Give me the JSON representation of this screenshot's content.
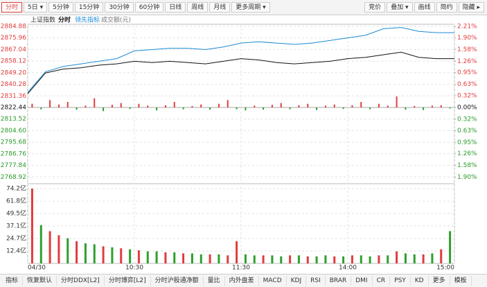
{
  "toolbar_left": [
    "分时",
    "5日 ▾",
    "5分钟",
    "15分钟",
    "30分钟",
    "60分钟",
    "日线",
    "周线",
    "月线",
    "更多周期 ▾"
  ],
  "toolbar_right": [
    "竞价",
    "叠加 ▾",
    "画线",
    "简约",
    "隐藏 ▸"
  ],
  "bottom_tabs": [
    "指标",
    "恢复默认",
    "分时DDX[L2]",
    "分时博弈[L2]",
    "分时沪股通净额",
    "量比",
    "内外盘差",
    "MACD",
    "KDJ",
    "RSI",
    "BRAR",
    "DMI",
    "CR",
    "PSY",
    "KD",
    "更多",
    "模板"
  ],
  "chart_data": [
    {
      "type": "line",
      "title": "上证指数",
      "x": [
        0,
        10,
        20,
        30,
        40,
        50,
        60,
        70,
        80,
        90,
        100,
        110,
        120,
        130,
        140,
        150,
        160,
        170,
        180,
        190,
        200,
        210,
        220,
        230,
        240
      ],
      "xlim": [
        0,
        240
      ],
      "xticks": [
        {
          "value": 0,
          "label": "04/30"
        },
        {
          "value": 60,
          "label": "10:30"
        },
        {
          "value": 120,
          "label": "11:30"
        },
        {
          "value": 180,
          "label": "14:00"
        },
        {
          "value": 240,
          "label": "15:00"
        }
      ],
      "series": [
        {
          "name": "分时",
          "color": "#111111",
          "values": [
            2833,
            2849,
            2852,
            2853,
            2855,
            2856,
            2858,
            2857,
            2858,
            2857,
            2856,
            2858,
            2860,
            2859,
            2857,
            2856,
            2857,
            2858,
            2860,
            2861,
            2863,
            2865,
            2861,
            2860,
            2860
          ]
        },
        {
          "name": "领先指标",
          "color": "#1a8ad4",
          "values": [
            2834,
            2850,
            2854,
            2856,
            2858,
            2860,
            2866,
            2867,
            2868,
            2868,
            2867,
            2869,
            2872,
            2873,
            2872,
            2871,
            2872,
            2874,
            2876,
            2878,
            2883,
            2884,
            2881,
            2880,
            2880
          ]
        }
      ],
      "bars": {
        "axis": "y2",
        "up_color": "#e03c3c",
        "down_color": "#2ca02c",
        "x": [
          2.5,
          7.5,
          12.5,
          17.5,
          22.5,
          27.5,
          32.5,
          37.5,
          42.5,
          47.5,
          52.5,
          57.5,
          62.5,
          67.5,
          72.5,
          77.5,
          82.5,
          87.5,
          92.5,
          97.5,
          102.5,
          107.5,
          112.5,
          117.5,
          122.5,
          127.5,
          132.5,
          137.5,
          142.5,
          147.5,
          152.5,
          157.5,
          162.5,
          167.5,
          172.5,
          177.5,
          182.5,
          187.5,
          192.5,
          197.5,
          202.5,
          207.5,
          212.5,
          217.5,
          222.5,
          227.5,
          232.5,
          237.5
        ],
        "values": [
          0.1,
          -0.05,
          0.2,
          0.08,
          0.15,
          -0.06,
          0.05,
          0.25,
          -0.1,
          0.07,
          0.12,
          -0.04,
          0.1,
          0.05,
          -0.08,
          0.06,
          0.15,
          -0.05,
          0.04,
          0.08,
          -0.06,
          0.1,
          0.2,
          -0.05,
          -0.08,
          0.05,
          -0.06,
          0.07,
          0.12,
          -0.05,
          0.06,
          0.1,
          -0.07,
          0.05,
          0.08,
          -0.04,
          0.06,
          0.15,
          -0.05,
          0.1,
          0.05,
          0.3,
          -0.06,
          0.04,
          -0.07,
          0.05,
          0.06,
          -0.03
        ]
      },
      "ylim": [
        2760,
        2884.88
      ],
      "yticks": [
        2884.88,
        2875.96,
        2867.04,
        2858.12,
        {
          "value": 2849.2,
          "label": "2849.20"
        },
        2840.28,
        2831.36,
        2822.44,
        2813.52,
        {
          "value": 2804.6,
          "label": "2804.60"
        },
        2795.68,
        2786.76,
        2777.84,
        2768.92
      ],
      "y2lim": [
        -2.21,
        2.21
      ],
      "y2ticks": [
        {
          "value": 2.21,
          "label": "2.21%"
        },
        {
          "value": 1.9,
          "label": "1.90%"
        },
        {
          "value": 1.58,
          "label": "1.58%"
        },
        {
          "value": 1.26,
          "label": "1.26%"
        },
        {
          "value": 0.95,
          "label": "0.95%"
        },
        {
          "value": 0.63,
          "label": "0.63%"
        },
        {
          "value": 0.32,
          "label": "0.32%"
        },
        {
          "value": 0,
          "label": "0.00%"
        },
        {
          "value": -0.32,
          "label": "0.32%"
        },
        {
          "value": -0.63,
          "label": "0.63%"
        },
        {
          "value": -0.95,
          "label": "0.95%"
        },
        {
          "value": -1.26,
          "label": "1.26%"
        },
        {
          "value": -1.58,
          "label": "1.58%"
        },
        {
          "value": -1.9,
          "label": "1.90%"
        }
      ],
      "grid": true
    },
    {
      "type": "bar",
      "title": "成交额(元)",
      "x": [
        2.5,
        7.5,
        12.5,
        17.5,
        22.5,
        27.5,
        32.5,
        37.5,
        42.5,
        47.5,
        52.5,
        57.5,
        62.5,
        67.5,
        72.5,
        77.5,
        82.5,
        87.5,
        92.5,
        97.5,
        102.5,
        107.5,
        112.5,
        117.5,
        122.5,
        127.5,
        132.5,
        137.5,
        142.5,
        147.5,
        152.5,
        157.5,
        162.5,
        167.5,
        172.5,
        177.5,
        182.5,
        187.5,
        192.5,
        197.5,
        202.5,
        207.5,
        212.5,
        217.5,
        222.5,
        227.5,
        232.5,
        237.5
      ],
      "values": [
        74.2,
        38,
        32,
        28,
        25,
        22,
        20,
        19,
        17,
        16,
        15,
        14,
        13,
        12,
        12,
        11,
        11,
        10,
        10,
        9,
        9,
        9,
        8,
        22,
        9,
        8,
        8,
        8,
        7,
        8,
        8,
        7,
        7,
        8,
        7,
        7,
        8,
        8,
        7,
        8,
        8,
        12,
        10,
        9,
        9,
        10,
        14,
        32
      ],
      "colors": [
        "#e03c3c",
        "#2ca02c",
        "#e03c3c",
        "#e03c3c",
        "#2ca02c",
        "#e03c3c",
        "#2ca02c",
        "#2ca02c",
        "#e03c3c",
        "#2ca02c",
        "#e03c3c",
        "#2ca02c",
        "#e03c3c",
        "#2ca02c",
        "#2ca02c",
        "#e03c3c",
        "#2ca02c",
        "#e03c3c",
        "#2ca02c",
        "#2ca02c",
        "#e03c3c",
        "#2ca02c",
        "#e03c3c",
        "#e03c3c",
        "#2ca02c",
        "#2ca02c",
        "#e03c3c",
        "#2ca02c",
        "#2ca02c",
        "#e03c3c",
        "#2ca02c",
        "#e03c3c",
        "#2ca02c",
        "#2ca02c",
        "#e03c3c",
        "#2ca02c",
        "#e03c3c",
        "#2ca02c",
        "#2ca02c",
        "#e03c3c",
        "#2ca02c",
        "#e03c3c",
        "#2ca02c",
        "#2ca02c",
        "#e03c3c",
        "#2ca02c",
        "#e03c3c",
        "#2ca02c"
      ],
      "xlim": [
        0,
        240
      ],
      "ylim": [
        0,
        77
      ],
      "yticks": [
        {
          "value": 12.4,
          "label": "12.4亿"
        },
        {
          "value": 24.7,
          "label": "24.7亿"
        },
        {
          "value": 37.1,
          "label": "37.1亿"
        },
        {
          "value": 49.5,
          "label": "49.5亿"
        },
        {
          "value": 61.8,
          "label": "61.8亿"
        },
        {
          "value": 74.2,
          "label": "74.2亿"
        }
      ],
      "grid": true
    }
  ]
}
